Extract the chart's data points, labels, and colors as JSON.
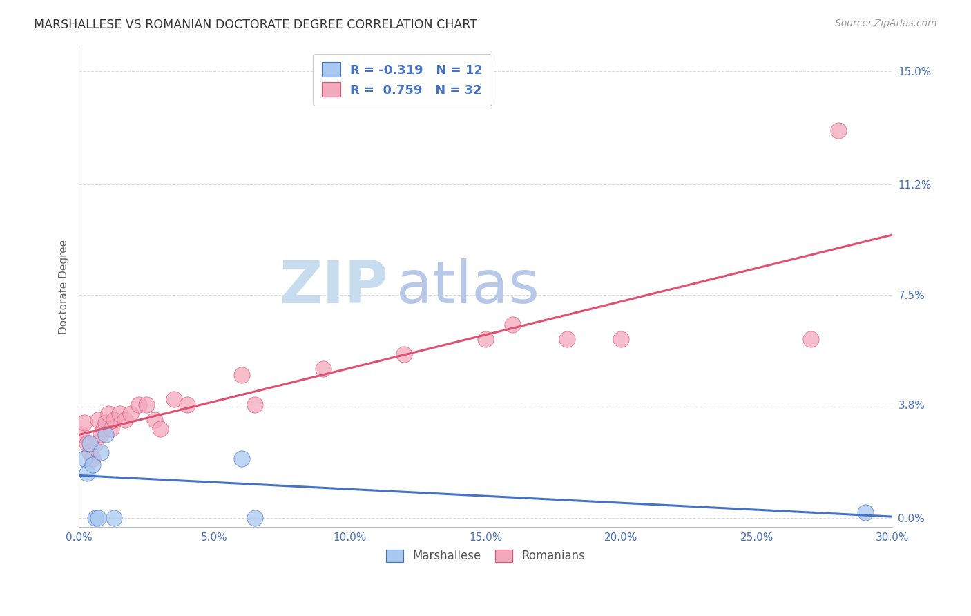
{
  "title": "MARSHALLESE VS ROMANIAN DOCTORATE DEGREE CORRELATION CHART",
  "source": "Source: ZipAtlas.com",
  "ylabel_label": "Doctorate Degree",
  "ylabel_ticks": [
    "0.0%",
    "3.8%",
    "7.5%",
    "11.2%",
    "15.0%"
  ],
  "xlim": [
    0.0,
    0.3
  ],
  "ylim": [
    -0.003,
    0.158
  ],
  "ytick_vals": [
    0.0,
    0.038,
    0.075,
    0.112,
    0.15
  ],
  "xtick_vals": [
    0.0,
    0.05,
    0.1,
    0.15,
    0.2,
    0.25,
    0.3
  ],
  "legend_r_marsh": "-0.319",
  "legend_n_marsh": "12",
  "legend_r_roman": "0.759",
  "legend_n_roman": "32",
  "color_marsh": "#A8C8F0",
  "color_roman": "#F4A8BC",
  "line_color_marsh": "#4472C4",
  "line_color_roman": "#E05070",
  "watermark_zip": "ZIP",
  "watermark_atlas": "atlas",
  "watermark_color_zip": "#C8DCF0",
  "watermark_color_atlas": "#B8C8E8",
  "marshallese_x": [
    0.002,
    0.003,
    0.004,
    0.005,
    0.006,
    0.007,
    0.008,
    0.01,
    0.013,
    0.06,
    0.065,
    0.29
  ],
  "marshallese_y": [
    0.02,
    0.015,
    0.025,
    0.018,
    0.0,
    0.0,
    0.022,
    0.028,
    0.0,
    0.02,
    0.0,
    0.002
  ],
  "romanians_x": [
    0.001,
    0.002,
    0.003,
    0.004,
    0.005,
    0.006,
    0.007,
    0.008,
    0.009,
    0.01,
    0.011,
    0.012,
    0.013,
    0.015,
    0.017,
    0.019,
    0.022,
    0.025,
    0.028,
    0.03,
    0.035,
    0.04,
    0.06,
    0.065,
    0.09,
    0.12,
    0.15,
    0.16,
    0.18,
    0.2,
    0.27,
    0.28
  ],
  "romanians_y": [
    0.028,
    0.032,
    0.025,
    0.022,
    0.02,
    0.025,
    0.033,
    0.028,
    0.03,
    0.032,
    0.035,
    0.03,
    0.033,
    0.035,
    0.033,
    0.035,
    0.038,
    0.038,
    0.033,
    0.03,
    0.04,
    0.038,
    0.048,
    0.038,
    0.05,
    0.055,
    0.06,
    0.065,
    0.06,
    0.06,
    0.06,
    0.13
  ],
  "background_color": "#FFFFFF",
  "grid_color": "#DDDDDD"
}
